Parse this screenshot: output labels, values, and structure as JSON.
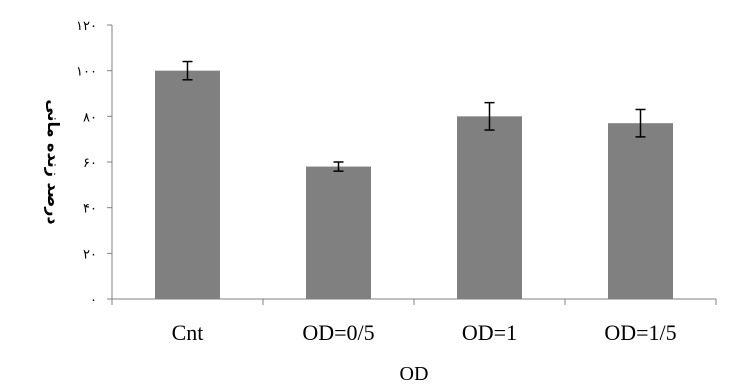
{
  "chart_data": {
    "type": "bar",
    "categories": [
      "Cnt",
      "OD=0/5",
      "OD=1",
      "OD=1/5"
    ],
    "values": [
      100,
      58,
      80,
      77
    ],
    "errors": [
      4,
      2,
      6,
      6
    ],
    "xlabel": "OD",
    "ylabel": "درصد زنده مانی",
    "ylim": [
      0,
      120
    ],
    "yticks": [
      0,
      20,
      40,
      60,
      80,
      100,
      120
    ],
    "ytick_labels": [
      "۰",
      "۲۰",
      "۴۰",
      "۶۰",
      "۸۰",
      "۱۰۰",
      "۱۲۰"
    ],
    "grid": false,
    "legend": "none",
    "colors": {
      "bar": "#808080",
      "axis": "#808080",
      "error": "#000000"
    }
  }
}
